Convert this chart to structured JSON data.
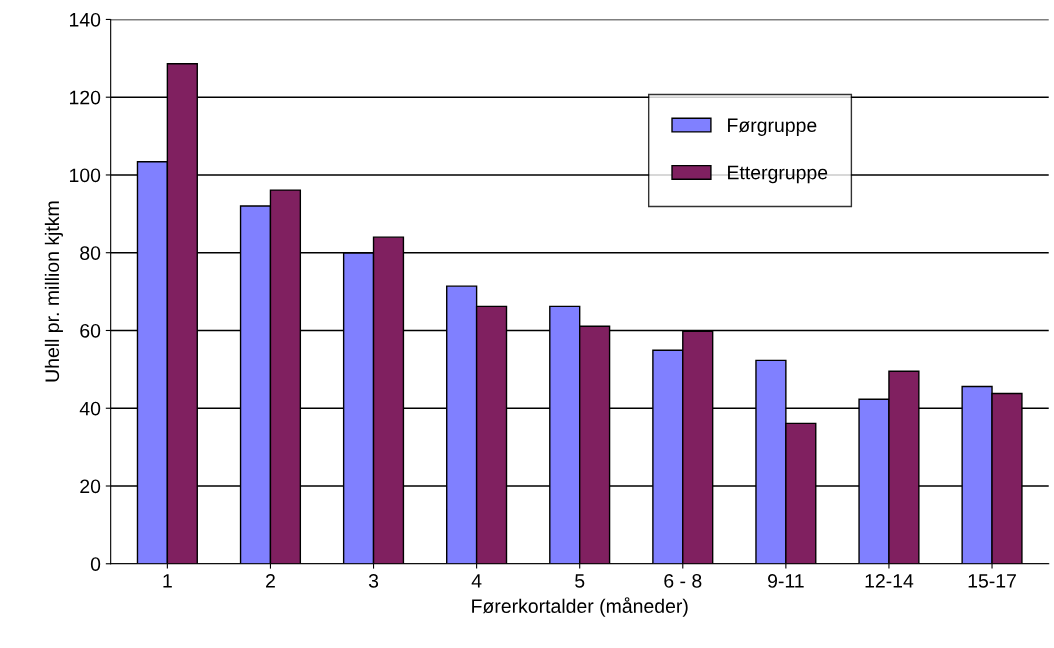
{
  "chart_data": {
    "type": "bar",
    "xlabel": "Førerkortalder (måneder)",
    "ylabel": "Uhell pr. million kjtkm",
    "categories": [
      "1",
      "2",
      "3",
      "4",
      "5",
      "6 - 8",
      "9-11",
      "12-14",
      "15-17"
    ],
    "series": [
      {
        "name": "Førgruppe",
        "color": "#8080ff",
        "values": [
          103.4,
          92,
          79.9,
          71.4,
          66.2,
          54.9,
          52.3,
          42.3,
          45.6
        ]
      },
      {
        "name": "Ettergruppe",
        "color": "#802060",
        "values": [
          128.6,
          96.1,
          84,
          66.2,
          61.1,
          59.8,
          36.1,
          49.5,
          43.8
        ]
      }
    ],
    "ylim": [
      0,
      140
    ],
    "yticks": [
      0,
      20,
      40,
      60,
      80,
      100,
      120,
      140
    ],
    "grid": "y",
    "legend": "top right"
  }
}
